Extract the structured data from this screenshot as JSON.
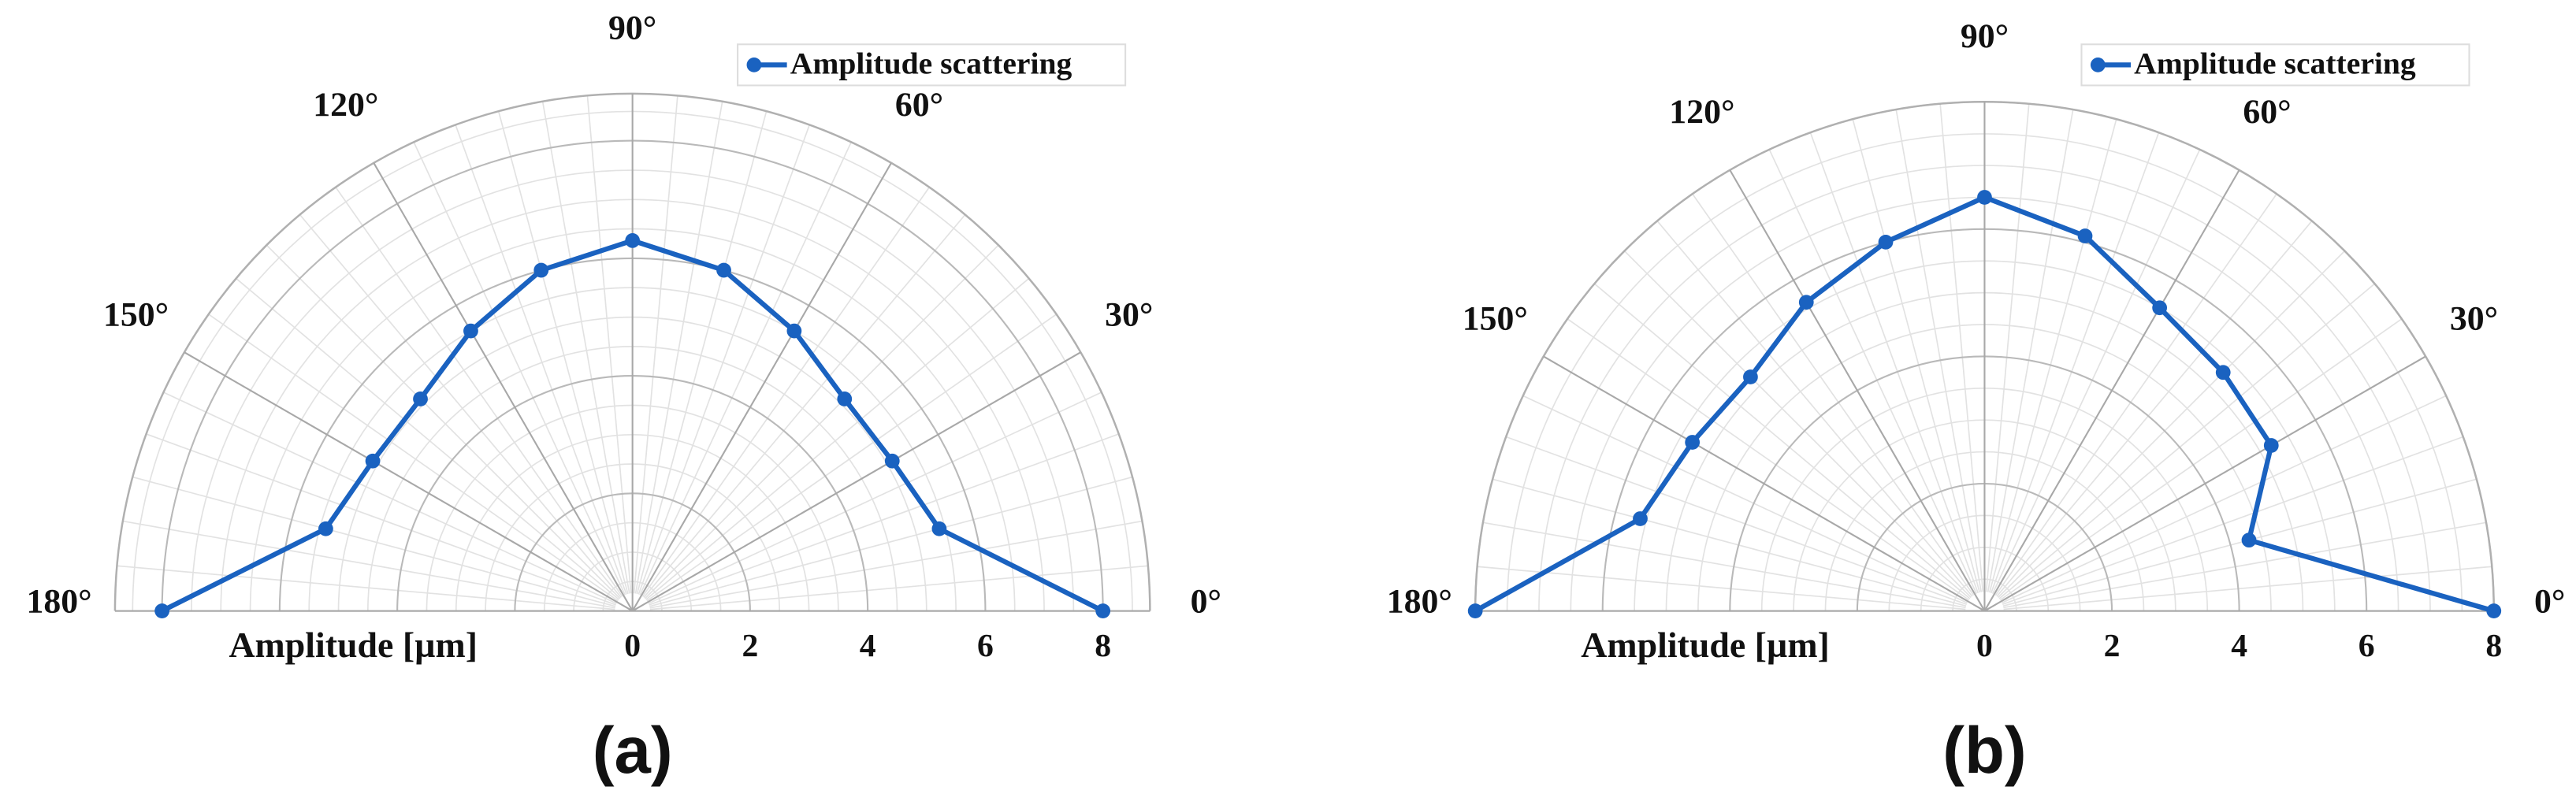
{
  "chart_data": [
    {
      "type": "polar",
      "label": "(a)",
      "r_label": "Amplitude [µm]",
      "x": [
        0,
        15,
        30,
        45,
        60,
        75,
        90,
        105,
        120,
        135,
        150,
        165,
        180
      ],
      "series": [
        {
          "name": "Amplitude scattering",
          "color": "#1a62c0",
          "values": [
            8,
            5.4,
            5.1,
            5.1,
            5.5,
            6.0,
            6.3,
            6.0,
            5.5,
            5.1,
            5.1,
            5.4,
            8
          ]
        }
      ],
      "rlim": [
        0,
        8.8
      ],
      "rticks": [
        0,
        2,
        4,
        6,
        8
      ],
      "thetaticks": [
        {
          "value": 0,
          "label": "0°"
        },
        {
          "value": 30,
          "label": "30°"
        },
        {
          "value": 60,
          "label": "60°"
        },
        {
          "value": 90,
          "label": "90°"
        },
        {
          "value": 120,
          "label": "120°"
        },
        {
          "value": 150,
          "label": "150°"
        },
        {
          "value": 180,
          "label": "180°"
        }
      ],
      "grid": true,
      "legend": "upper right"
    },
    {
      "type": "polar",
      "label": "(b)",
      "r_label": "Amplitude [µm]",
      "x": [
        0,
        15,
        30,
        45,
        60,
        75,
        90,
        105,
        120,
        135,
        150,
        165,
        180
      ],
      "series": [
        {
          "name": "Amplitude scattering",
          "color": "#1a62c0",
          "values": [
            8,
            4.3,
            5.2,
            5.3,
            5.5,
            6.1,
            6.5,
            6.0,
            5.6,
            5.2,
            5.3,
            5.6,
            8
          ]
        }
      ],
      "rlim": [
        0,
        8
      ],
      "rticks": [
        0,
        2,
        4,
        6,
        8
      ],
      "thetaticks": [
        {
          "value": 0,
          "label": "0°"
        },
        {
          "value": 30,
          "label": "30°"
        },
        {
          "value": 60,
          "label": "60°"
        },
        {
          "value": 90,
          "label": "90°"
        },
        {
          "value": 120,
          "label": "120°"
        },
        {
          "value": 150,
          "label": "150°"
        },
        {
          "value": 180,
          "label": "180°"
        }
      ],
      "grid": true,
      "legend": "upper right"
    }
  ]
}
